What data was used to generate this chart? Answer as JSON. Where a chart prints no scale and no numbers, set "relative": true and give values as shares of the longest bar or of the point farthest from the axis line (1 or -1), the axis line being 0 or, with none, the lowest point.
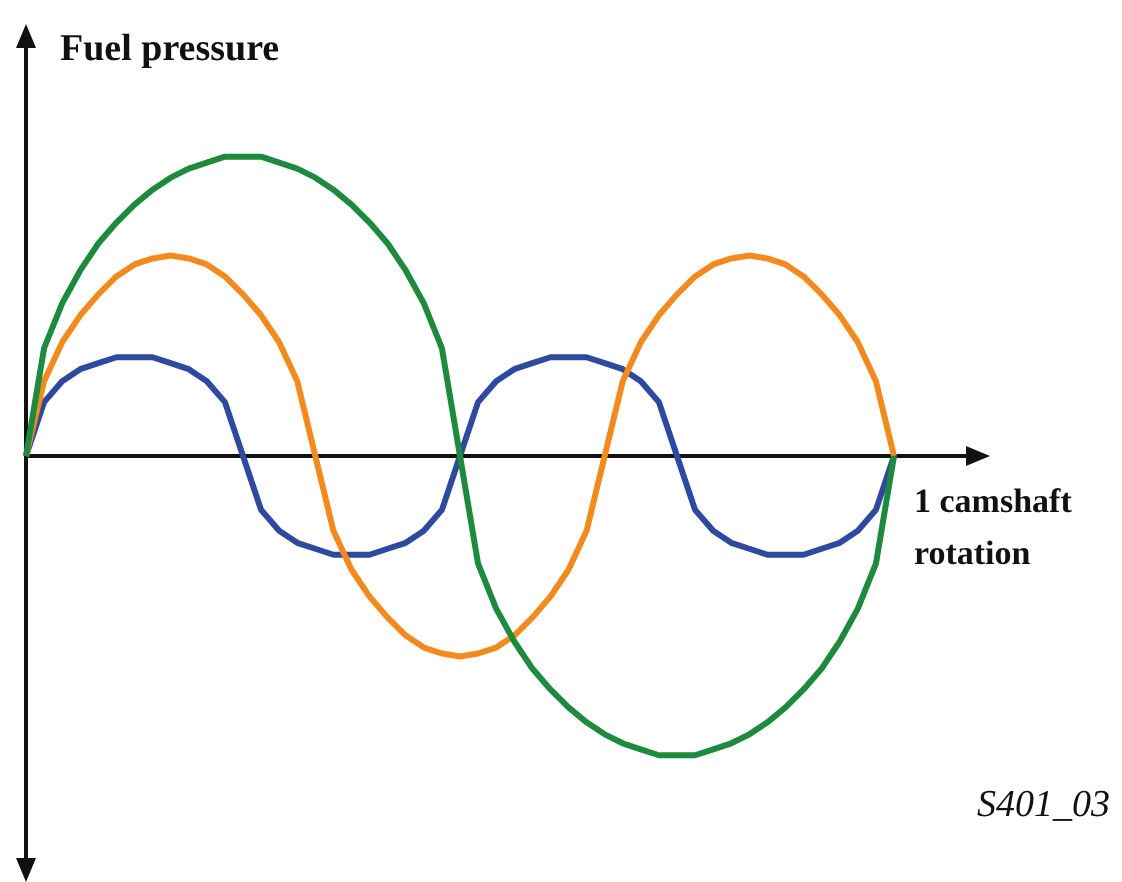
{
  "chart_data": {
    "type": "line",
    "relative": true,
    "ylabel": "Fuel pressure",
    "xlabel": "1 camshaft rotation",
    "annotations": [
      "S401_03"
    ],
    "marker": "none",
    "categories": [
      null,
      null,
      null,
      null,
      null,
      null,
      null,
      null,
      null,
      null,
      null,
      null,
      null,
      null,
      null,
      null,
      null,
      null,
      null,
      null,
      null,
      null,
      null,
      null,
      null,
      null,
      null,
      null,
      null,
      null,
      null,
      null,
      null,
      null,
      null,
      null,
      null,
      null,
      null,
      null,
      null,
      null,
      null,
      null,
      null,
      null,
      null,
      null,
      null
    ],
    "series": [
      {
        "color": "#1e8a3e",
        "values": [
          0,
          0.36,
          0.51,
          0.62,
          0.71,
          0.78,
          0.84,
          0.89,
          0.93,
          0.96,
          0.98,
          1,
          1,
          1,
          0.98,
          0.96,
          0.93,
          0.89,
          0.84,
          0.78,
          0.71,
          0.62,
          0.51,
          0.36,
          0,
          -0.36,
          -0.51,
          -0.62,
          -0.71,
          -0.78,
          -0.84,
          -0.89,
          -0.93,
          -0.96,
          -0.98,
          -1,
          -1,
          -1,
          -0.98,
          -0.96,
          -0.93,
          -0.89,
          -0.84,
          -0.78,
          -0.71,
          -0.62,
          -0.51,
          -0.36,
          0
        ]
      },
      {
        "color": "#f28a1e",
        "values": [
          0,
          0.25,
          0.38,
          0.47,
          0.54,
          0.6,
          0.64,
          0.66,
          0.67,
          0.66,
          0.64,
          0.6,
          0.54,
          0.47,
          0.38,
          0.25,
          0,
          -0.25,
          -0.38,
          -0.47,
          -0.54,
          -0.6,
          -0.64,
          -0.66,
          -0.67,
          -0.66,
          -0.64,
          -0.6,
          -0.54,
          -0.47,
          -0.38,
          -0.25,
          0,
          0.25,
          0.38,
          0.47,
          0.54,
          0.6,
          0.64,
          0.66,
          0.67,
          0.66,
          0.64,
          0.6,
          0.54,
          0.47,
          0.38,
          0.25,
          0
        ]
      },
      {
        "color": "#2e4a9e",
        "values": [
          0,
          0.18,
          0.25,
          0.29,
          0.31,
          0.33,
          0.33,
          0.33,
          0.31,
          0.29,
          0.25,
          0.18,
          0,
          -0.18,
          -0.25,
          -0.29,
          -0.31,
          -0.33,
          -0.33,
          -0.33,
          -0.31,
          -0.29,
          -0.25,
          -0.18,
          0,
          0.18,
          0.25,
          0.29,
          0.31,
          0.33,
          0.33,
          0.33,
          0.31,
          0.29,
          0.25,
          0.18,
          0,
          -0.18,
          -0.25,
          -0.29,
          -0.31,
          -0.33,
          -0.33,
          -0.33,
          -0.31,
          -0.29,
          -0.25,
          -0.18,
          0
        ]
      }
    ]
  }
}
